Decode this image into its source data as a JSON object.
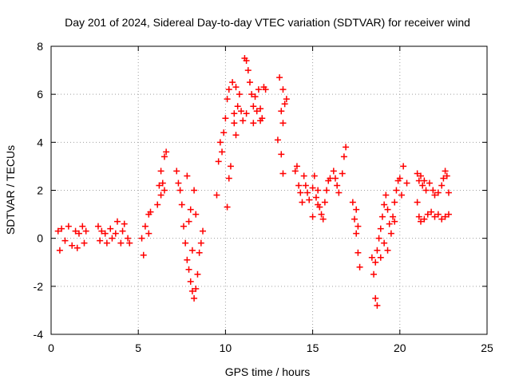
{
  "chart_data": {
    "type": "scatter",
    "title": "Day 201 of 2024, Sidereal Day-to-day VTEC variation (SDTVAR) for receiver wind",
    "xlabel": "GPS time / hours",
    "ylabel": "SDTVAR / TECUs",
    "xlim": [
      0,
      25
    ],
    "ylim": [
      -4,
      8
    ],
    "xticks": [
      0,
      5,
      10,
      15,
      20,
      25
    ],
    "yticks": [
      -4,
      -2,
      0,
      2,
      4,
      6,
      8
    ],
    "xtick_labels": [
      "0",
      "5",
      "10",
      "15",
      "20",
      "25"
    ],
    "ytick_labels": [
      "-4",
      "-2",
      "0",
      "2",
      "4",
      "6",
      "8"
    ],
    "grid": true,
    "marker": "plus",
    "color": "#ff0000",
    "series": [
      {
        "name": "SDTVAR",
        "points": [
          [
            0.4,
            0.3
          ],
          [
            0.5,
            -0.5
          ],
          [
            0.6,
            0.4
          ],
          [
            0.8,
            -0.1
          ],
          [
            1.0,
            0.5
          ],
          [
            1.2,
            -0.3
          ],
          [
            1.4,
            0.3
          ],
          [
            1.5,
            -0.4
          ],
          [
            1.6,
            0.2
          ],
          [
            1.8,
            0.5
          ],
          [
            1.9,
            -0.2
          ],
          [
            2.0,
            0.3
          ],
          [
            2.7,
            0.5
          ],
          [
            2.8,
            -0.1
          ],
          [
            2.9,
            0.3
          ],
          [
            3.1,
            0.2
          ],
          [
            3.2,
            -0.2
          ],
          [
            3.4,
            0.4
          ],
          [
            3.5,
            0.0
          ],
          [
            3.7,
            0.2
          ],
          [
            3.8,
            0.7
          ],
          [
            4.0,
            -0.2
          ],
          [
            4.1,
            0.3
          ],
          [
            4.2,
            0.6
          ],
          [
            4.4,
            0.0
          ],
          [
            4.5,
            -0.2
          ],
          [
            5.2,
            0.0
          ],
          [
            5.3,
            -0.7
          ],
          [
            5.4,
            0.5
          ],
          [
            5.6,
            1.0
          ],
          [
            5.7,
            1.1
          ],
          [
            5.6,
            0.2
          ],
          [
            6.1,
            1.4
          ],
          [
            6.2,
            2.2
          ],
          [
            6.3,
            2.8
          ],
          [
            6.4,
            2.3
          ],
          [
            6.5,
            3.4
          ],
          [
            6.6,
            3.6
          ],
          [
            6.3,
            1.8
          ],
          [
            6.5,
            2.0
          ],
          [
            7.2,
            2.8
          ],
          [
            7.3,
            2.3
          ],
          [
            7.4,
            2.0
          ],
          [
            7.5,
            1.4
          ],
          [
            7.6,
            0.5
          ],
          [
            7.7,
            -0.2
          ],
          [
            7.8,
            -0.9
          ],
          [
            7.9,
            -1.3
          ],
          [
            8.0,
            -1.8
          ],
          [
            8.1,
            -2.2
          ],
          [
            8.2,
            -2.5
          ],
          [
            8.3,
            -2.1
          ],
          [
            8.4,
            -1.5
          ],
          [
            8.5,
            -0.6
          ],
          [
            8.6,
            -0.2
          ],
          [
            8.7,
            0.3
          ],
          [
            8.0,
            1.2
          ],
          [
            8.2,
            2.0
          ],
          [
            8.3,
            1.0
          ],
          [
            7.8,
            2.6
          ],
          [
            8.1,
            -0.5
          ],
          [
            7.9,
            0.7
          ],
          [
            9.5,
            1.8
          ],
          [
            9.6,
            3.2
          ],
          [
            9.7,
            4.0
          ],
          [
            9.8,
            3.6
          ],
          [
            9.9,
            4.4
          ],
          [
            10.0,
            5.0
          ],
          [
            10.1,
            1.3
          ],
          [
            10.2,
            2.5
          ],
          [
            10.3,
            3.0
          ],
          [
            10.1,
            5.8
          ],
          [
            10.2,
            6.2
          ],
          [
            10.4,
            6.5
          ],
          [
            10.6,
            6.3
          ],
          [
            10.7,
            5.5
          ],
          [
            10.8,
            6.0
          ],
          [
            10.5,
            5.2
          ],
          [
            10.5,
            4.8
          ],
          [
            10.6,
            4.3
          ],
          [
            10.9,
            5.3
          ],
          [
            11.1,
            7.5
          ],
          [
            11.2,
            7.4
          ],
          [
            11.3,
            7.0
          ],
          [
            11.4,
            6.5
          ],
          [
            11.5,
            6.0
          ],
          [
            11.6,
            5.5
          ],
          [
            11.7,
            5.9
          ],
          [
            11.8,
            5.3
          ],
          [
            11.9,
            6.2
          ],
          [
            12.0,
            5.4
          ],
          [
            12.1,
            5.0
          ],
          [
            12.2,
            6.3
          ],
          [
            12.3,
            6.2
          ],
          [
            11.2,
            5.2
          ],
          [
            11.0,
            4.9
          ],
          [
            11.6,
            4.8
          ],
          [
            12.0,
            4.9
          ],
          [
            13.1,
            6.7
          ],
          [
            13.2,
            5.3
          ],
          [
            13.3,
            4.8
          ],
          [
            13.4,
            5.6
          ],
          [
            13.2,
            3.5
          ],
          [
            13.3,
            2.7
          ],
          [
            13.0,
            4.1
          ],
          [
            13.3,
            6.2
          ],
          [
            13.5,
            5.8
          ],
          [
            14.0,
            2.8
          ],
          [
            14.1,
            3.0
          ],
          [
            14.2,
            2.2
          ],
          [
            14.3,
            1.9
          ],
          [
            14.4,
            1.5
          ],
          [
            14.5,
            2.6
          ],
          [
            14.6,
            2.2
          ],
          [
            14.7,
            1.9
          ],
          [
            14.8,
            1.6
          ],
          [
            15.0,
            2.1
          ],
          [
            15.1,
            2.6
          ],
          [
            15.2,
            1.7
          ],
          [
            15.3,
            1.4
          ],
          [
            15.4,
            1.3
          ],
          [
            15.5,
            1.0
          ],
          [
            15.6,
            0.8
          ],
          [
            15.7,
            1.5
          ],
          [
            15.8,
            2.0
          ],
          [
            15.9,
            2.4
          ],
          [
            16.0,
            2.5
          ],
          [
            16.2,
            2.8
          ],
          [
            16.3,
            2.5
          ],
          [
            16.4,
            2.2
          ],
          [
            16.5,
            1.9
          ],
          [
            16.7,
            2.7
          ],
          [
            16.8,
            3.4
          ],
          [
            16.9,
            3.8
          ],
          [
            15.0,
            0.9
          ],
          [
            15.3,
            2.0
          ],
          [
            17.4,
            0.8
          ],
          [
            17.5,
            0.2
          ],
          [
            17.6,
            -0.6
          ],
          [
            17.7,
            -1.2
          ],
          [
            17.5,
            1.2
          ],
          [
            17.6,
            0.5
          ],
          [
            17.3,
            1.5
          ],
          [
            18.4,
            -0.8
          ],
          [
            18.5,
            -1.5
          ],
          [
            18.6,
            -1.0
          ],
          [
            18.7,
            -0.5
          ],
          [
            18.8,
            0.0
          ],
          [
            18.9,
            0.4
          ],
          [
            19.0,
            0.9
          ],
          [
            19.1,
            1.4
          ],
          [
            19.2,
            1.8
          ],
          [
            19.3,
            1.2
          ],
          [
            19.4,
            0.6
          ],
          [
            19.5,
            0.2
          ],
          [
            19.6,
            0.9
          ],
          [
            19.7,
            1.5
          ],
          [
            19.8,
            2.0
          ],
          [
            19.9,
            2.4
          ],
          [
            20.0,
            2.5
          ],
          [
            20.1,
            1.8
          ],
          [
            18.6,
            -2.5
          ],
          [
            18.7,
            -2.8
          ],
          [
            18.9,
            -0.8
          ],
          [
            19.1,
            -0.2
          ],
          [
            19.3,
            -0.5
          ],
          [
            19.7,
            0.7
          ],
          [
            20.2,
            3.0
          ],
          [
            20.4,
            2.3
          ],
          [
            21.0,
            2.7
          ],
          [
            21.1,
            2.4
          ],
          [
            21.2,
            2.6
          ],
          [
            21.3,
            2.2
          ],
          [
            21.4,
            2.4
          ],
          [
            21.5,
            2.0
          ],
          [
            21.7,
            2.3
          ],
          [
            21.9,
            2.0
          ],
          [
            22.0,
            1.8
          ],
          [
            22.2,
            1.9
          ],
          [
            22.4,
            2.2
          ],
          [
            22.5,
            2.5
          ],
          [
            22.6,
            2.8
          ],
          [
            22.7,
            2.6
          ],
          [
            22.8,
            1.9
          ],
          [
            21.0,
            1.5
          ],
          [
            21.1,
            0.9
          ],
          [
            21.2,
            0.7
          ],
          [
            21.4,
            0.8
          ],
          [
            21.6,
            1.0
          ],
          [
            21.8,
            1.1
          ],
          [
            22.0,
            0.9
          ],
          [
            22.2,
            1.0
          ],
          [
            22.4,
            0.8
          ],
          [
            22.6,
            0.9
          ],
          [
            22.8,
            1.0
          ]
        ]
      }
    ]
  }
}
